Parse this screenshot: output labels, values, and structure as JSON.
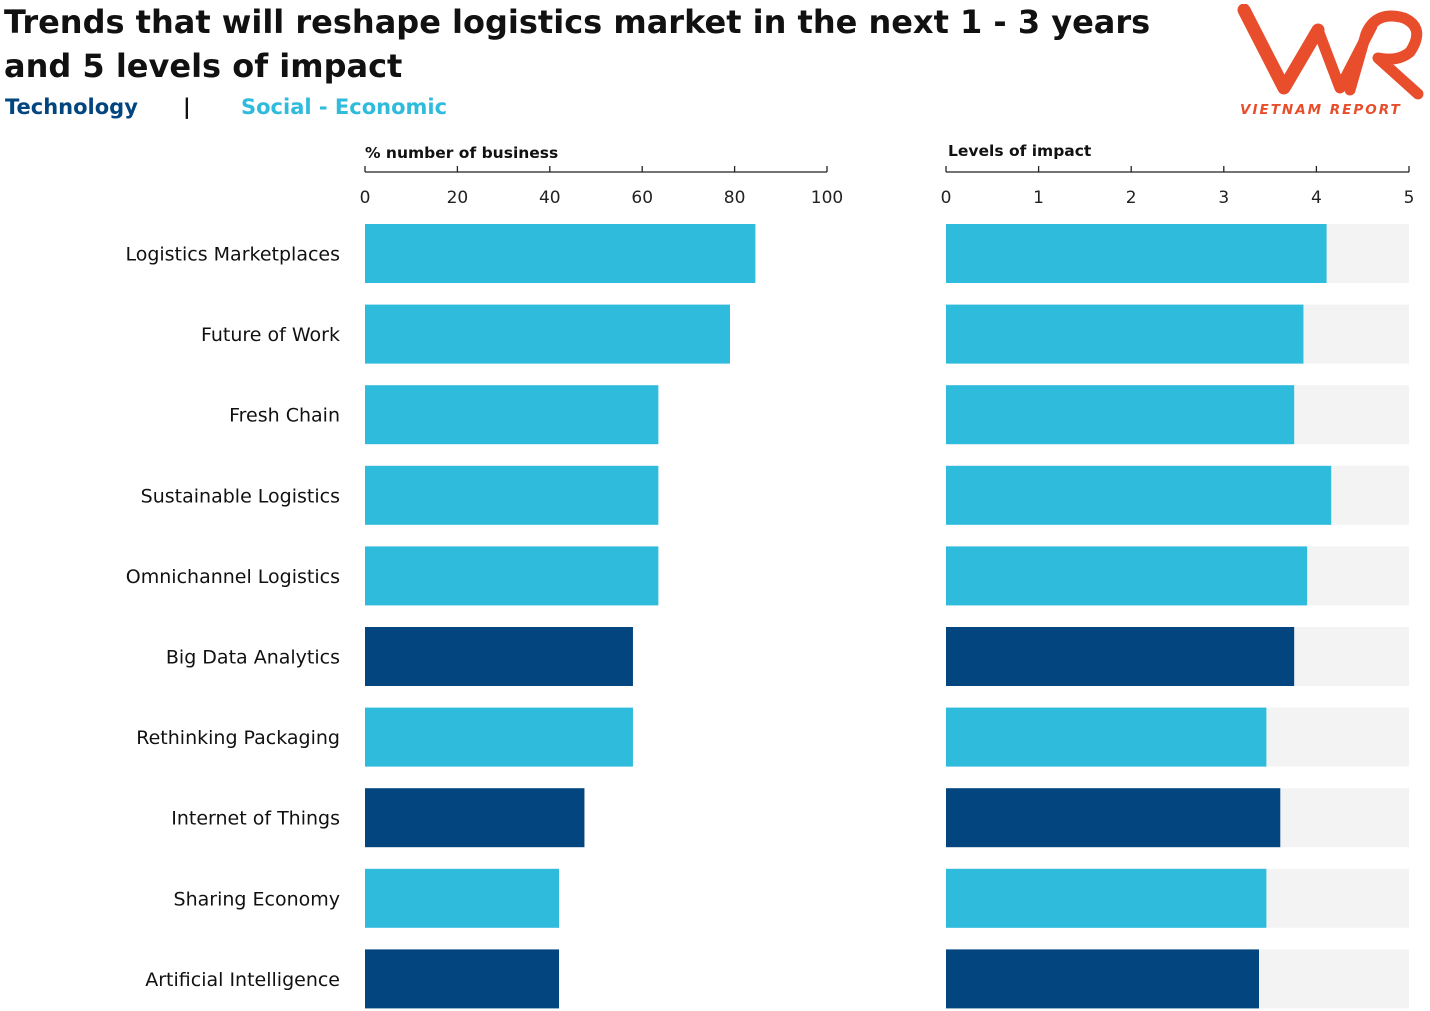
{
  "title": "Trends that will reshape logistics market in the next 1 - 3 years and 5 levels of impact",
  "legend": {
    "technology": "Technology",
    "separator": "|",
    "social_economic": "Social - Economic"
  },
  "colors": {
    "technology": "#02457f",
    "social_economic": "#2fbbdc",
    "track": "#f3f3f3",
    "logo": "#e84d2c"
  },
  "logo": {
    "mark": "VNR",
    "subtitle": "VIETNAM REPORT"
  },
  "chart_data": [
    {
      "type": "bar",
      "orientation": "horizontal",
      "title": "% number of business",
      "xlim": [
        0,
        100
      ],
      "ticks": [
        0,
        20,
        40,
        60,
        80,
        100
      ],
      "categories": [
        "Logistics Marketplaces",
        "Future of Work",
        "Fresh Chain",
        "Sustainable Logistics",
        "Omnichannel Logistics",
        "Big Data Analytics",
        "Rethinking Packaging",
        "Internet of Things",
        "Sharing Economy",
        "Artificial Intelligence"
      ],
      "groups": [
        "social_economic",
        "social_economic",
        "social_economic",
        "social_economic",
        "social_economic",
        "technology",
        "social_economic",
        "technology",
        "social_economic",
        "technology"
      ],
      "values": [
        84.5,
        79,
        63.5,
        63.5,
        63.5,
        58,
        58,
        47.5,
        42,
        42
      ]
    },
    {
      "type": "bar",
      "orientation": "horizontal",
      "title": "Levels of impact",
      "xlim": [
        0,
        5
      ],
      "ticks": [
        0,
        1,
        2,
        3,
        4,
        5
      ],
      "categories": [
        "Logistics Marketplaces",
        "Future of Work",
        "Fresh Chain",
        "Sustainable Logistics",
        "Omnichannel Logistics",
        "Big Data Analytics",
        "Rethinking Packaging",
        "Internet of Things",
        "Sharing Economy",
        "Artificial Intelligence"
      ],
      "groups": [
        "social_economic",
        "social_economic",
        "social_economic",
        "social_economic",
        "social_economic",
        "technology",
        "social_economic",
        "technology",
        "social_economic",
        "technology"
      ],
      "values": [
        4.11,
        3.86,
        3.76,
        4.16,
        3.9,
        3.76,
        3.46,
        3.61,
        3.46,
        3.38
      ],
      "background_track_max": 5
    }
  ]
}
